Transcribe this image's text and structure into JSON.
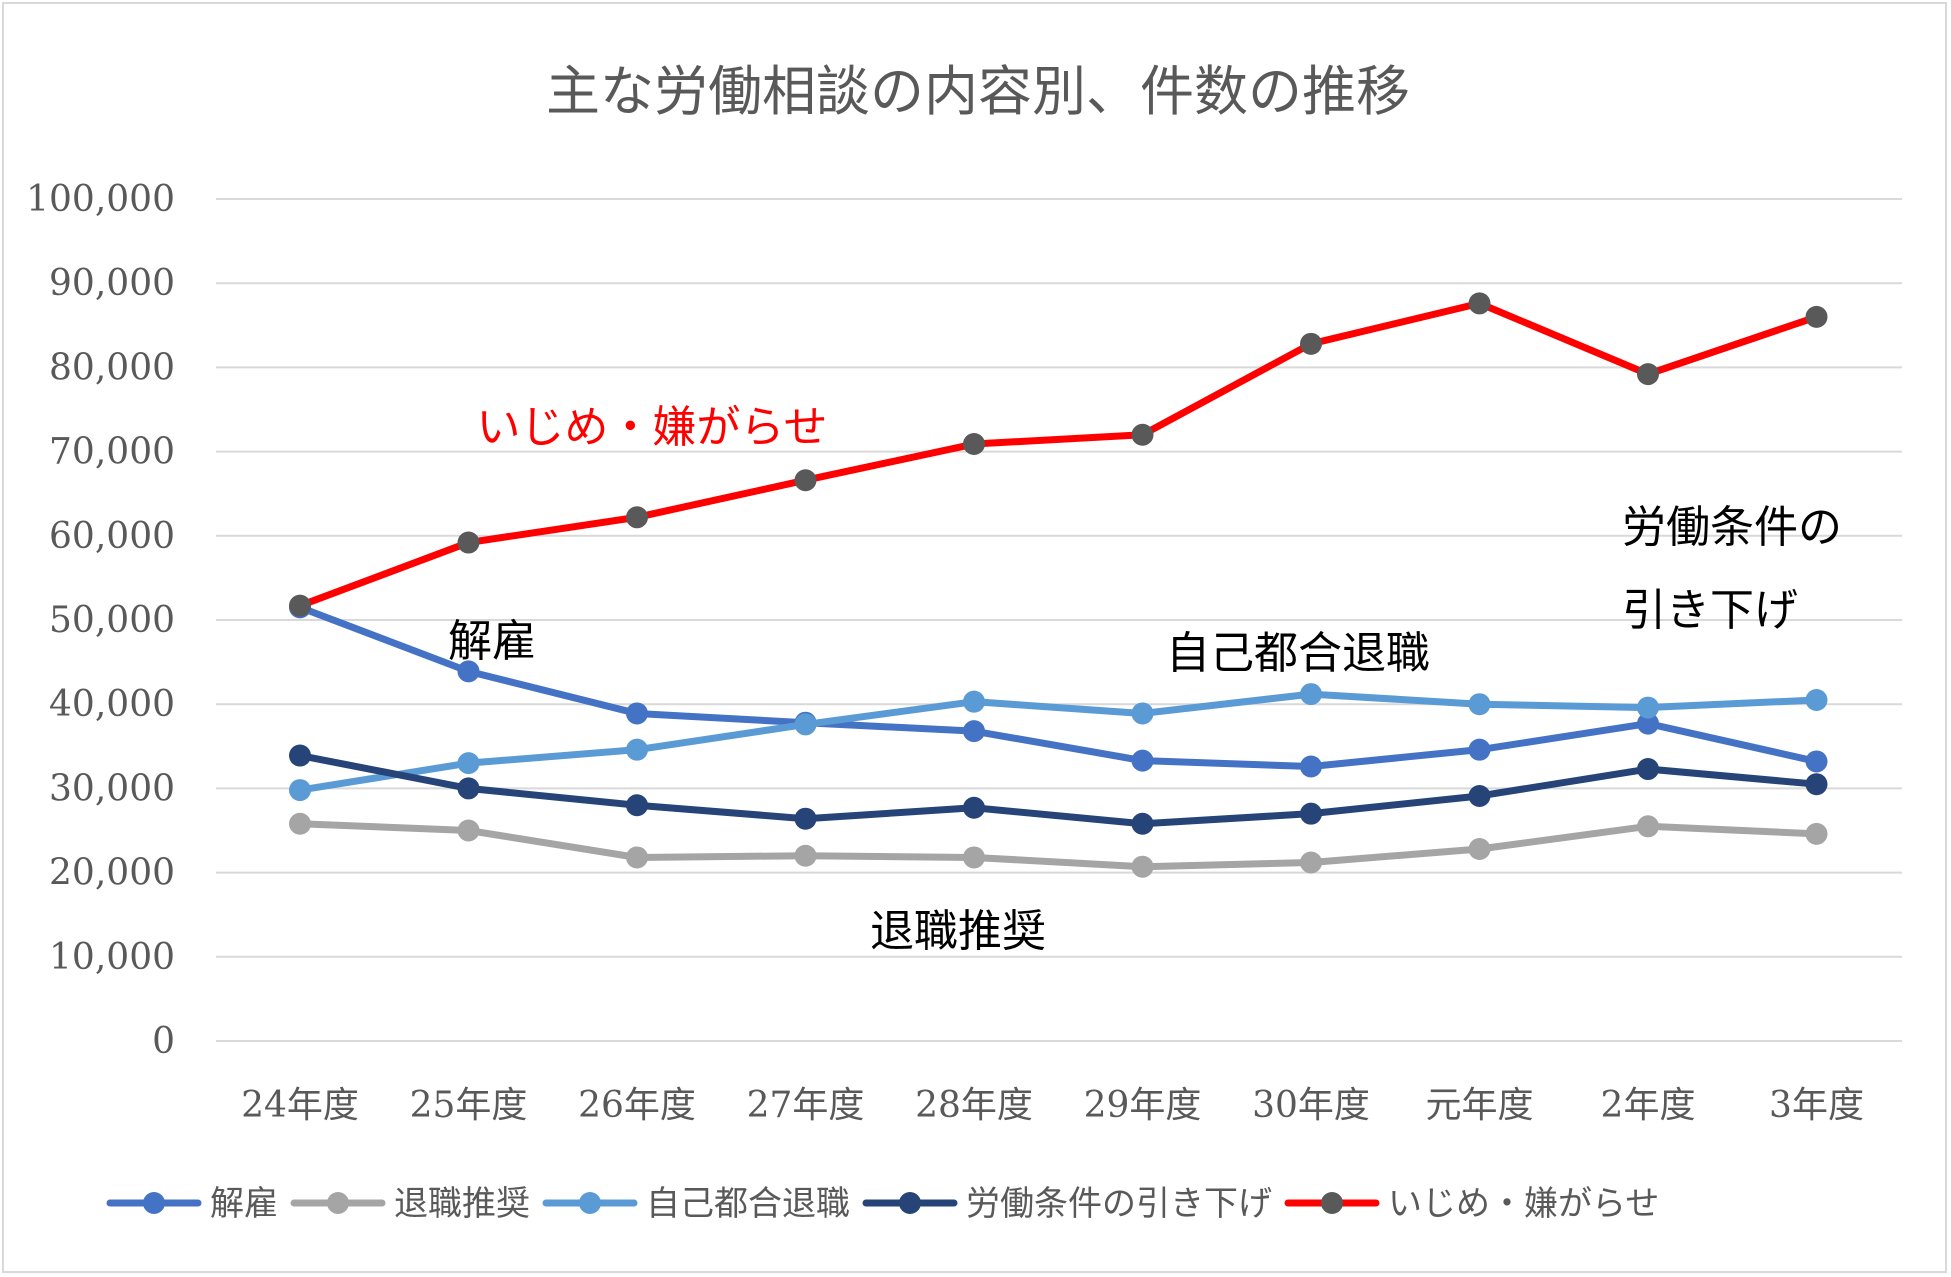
{
  "chart_data": {
    "type": "line",
    "title": "主な労働相談の内容別、件数の推移",
    "xlabel": "",
    "ylabel": "",
    "categories": [
      "24年度",
      "25年度",
      "26年度",
      "27年度",
      "28年度",
      "29年度",
      "30年度",
      "元年度",
      "2年度",
      "3年度"
    ],
    "ylim": [
      0,
      100000
    ],
    "y_ticks": [
      "0",
      "10,000",
      "20,000",
      "30,000",
      "40,000",
      "50,000",
      "60,000",
      "70,000",
      "80,000",
      "90,000",
      "100,000"
    ],
    "grid": true,
    "legend_position": "bottom",
    "series": [
      {
        "name": "解雇",
        "color": "#4472c4",
        "marker_color": "#4472c4",
        "values": [
          51500,
          43900,
          38900,
          37800,
          36800,
          33300,
          32600,
          34600,
          37700,
          33200
        ]
      },
      {
        "name": "退職推奨",
        "color": "#a5a5a5",
        "marker_color": "#a5a5a5",
        "values": [
          25800,
          25000,
          21800,
          22000,
          21800,
          20700,
          21200,
          22800,
          25500,
          24600
        ]
      },
      {
        "name": "自己都合退職",
        "color": "#5b9bd5",
        "marker_color": "#5b9bd5",
        "values": [
          29800,
          33000,
          34600,
          37600,
          40300,
          38900,
          41200,
          40000,
          39600,
          40500
        ]
      },
      {
        "name": "労働条件の引き下げ",
        "color": "#264478",
        "marker_color": "#264478",
        "values": [
          33900,
          30000,
          28000,
          26400,
          27700,
          25800,
          27000,
          29100,
          32300,
          30500
        ]
      },
      {
        "name": "いじめ・嫌がらせ",
        "color": "#ff0000",
        "marker_color": "#595959",
        "values": [
          51700,
          59200,
          62200,
          66600,
          70900,
          72000,
          82800,
          87600,
          79200,
          86000
        ]
      }
    ],
    "annotations": [
      {
        "id": "ijime",
        "lines": [
          "いじめ・嫌がらせ"
        ],
        "color": "#ff0000"
      },
      {
        "id": "kaiko",
        "lines": [
          "解雇"
        ],
        "color": "#000000"
      },
      {
        "id": "jiko",
        "lines": [
          "自己都合退職"
        ],
        "color": "#000000"
      },
      {
        "id": "taishoku",
        "lines": [
          "退職推奨"
        ],
        "color": "#000000"
      },
      {
        "id": "roudou",
        "lines": [
          "労働条件の",
          "引き下げ"
        ],
        "color": "#000000"
      }
    ]
  }
}
